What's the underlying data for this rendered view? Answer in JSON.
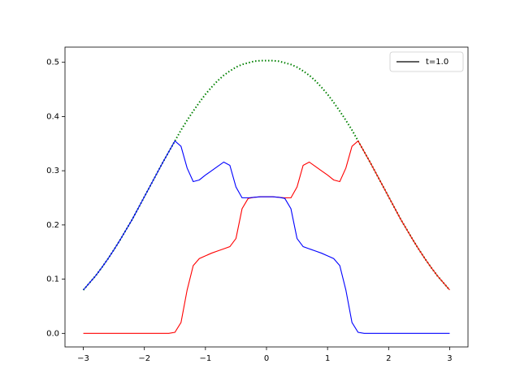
{
  "chart_data": {
    "type": "line",
    "x": [
      -3,
      -2.9,
      -2.8,
      -2.7,
      -2.6,
      -2.5,
      -2.4,
      -2.3,
      -2.2,
      -2.1,
      -2,
      -1.9,
      -1.8,
      -1.7,
      -1.6,
      -1.5,
      -1.4,
      -1.3,
      -1.2,
      -1.1,
      -1,
      -0.9,
      -0.8,
      -0.7,
      -0.6,
      -0.5,
      -0.4,
      -0.3,
      -0.2,
      -0.1,
      0,
      0.1,
      0.2,
      0.3,
      0.4,
      0.5,
      0.6,
      0.7,
      0.8,
      0.9,
      1,
      1.1,
      1.2,
      1.3,
      1.4,
      1.5,
      1.6,
      1.7,
      1.8,
      1.9,
      2,
      2.1,
      2.2,
      2.3,
      2.4,
      2.5,
      2.6,
      2.7,
      2.8,
      2.9,
      3
    ],
    "series": [
      {
        "color": "#008000",
        "style": "dotted",
        "values": [
          0.08,
          0.093,
          0.106,
          0.121,
          0.137,
          0.154,
          0.172,
          0.191,
          0.21,
          0.231,
          0.252,
          0.273,
          0.294,
          0.315,
          0.335,
          0.355,
          0.375,
          0.393,
          0.41,
          0.426,
          0.441,
          0.454,
          0.466,
          0.476,
          0.484,
          0.491,
          0.496,
          0.499,
          0.502,
          0.503,
          0.503,
          0.503,
          0.502,
          0.499,
          0.496,
          0.491,
          0.484,
          0.476,
          0.466,
          0.454,
          0.441,
          0.426,
          0.41,
          0.393,
          0.375,
          0.355,
          0.335,
          0.315,
          0.294,
          0.273,
          0.252,
          0.231,
          0.21,
          0.191,
          0.172,
          0.154,
          0.137,
          0.121,
          0.106,
          0.093,
          0.08
        ]
      },
      {
        "color": "#ff0000",
        "style": "solid",
        "values": [
          0,
          0,
          0,
          0,
          0,
          0,
          0,
          0,
          0,
          0,
          0,
          0,
          0,
          0,
          0,
          0.002,
          0.02,
          0.08,
          0.125,
          0.138,
          0.143,
          0.148,
          0.152,
          0.156,
          0.16,
          0.175,
          0.23,
          0.249,
          0.251,
          0.252,
          0.252,
          0.252,
          0.251,
          0.25,
          0.25,
          0.27,
          0.31,
          0.316,
          0.308,
          0.3,
          0.292,
          0.283,
          0.28,
          0.305,
          0.345,
          0.355,
          0.335,
          0.315,
          0.294,
          0.273,
          0.252,
          0.231,
          0.21,
          0.191,
          0.172,
          0.154,
          0.137,
          0.121,
          0.106,
          0.093,
          0.08
        ]
      },
      {
        "color": "#0000ff",
        "style": "solid",
        "values": [
          0.08,
          0.093,
          0.106,
          0.121,
          0.137,
          0.154,
          0.172,
          0.191,
          0.21,
          0.231,
          0.252,
          0.273,
          0.294,
          0.315,
          0.335,
          0.355,
          0.345,
          0.305,
          0.28,
          0.283,
          0.292,
          0.3,
          0.308,
          0.316,
          0.31,
          0.27,
          0.25,
          0.25,
          0.251,
          0.252,
          0.252,
          0.252,
          0.251,
          0.249,
          0.23,
          0.175,
          0.16,
          0.156,
          0.152,
          0.148,
          0.143,
          0.138,
          0.125,
          0.08,
          0.02,
          0.002,
          0,
          0,
          0,
          0,
          0,
          0,
          0,
          0,
          0,
          0,
          0,
          0,
          0,
          0,
          0
        ]
      }
    ],
    "legend": {
      "label": "t=1.0",
      "color": "#000000",
      "loc": "upper right"
    },
    "xlim": [
      -3.3,
      3.3
    ],
    "xticks": [
      {
        "value": -3,
        "label": "−3"
      },
      {
        "value": -2,
        "label": "−2"
      },
      {
        "value": -1,
        "label": "−1"
      },
      0,
      1,
      2,
      3
    ],
    "ylim": [
      -0.025,
      0.528
    ],
    "yticks": [
      {
        "value": 0,
        "label": "0.0"
      },
      0.1,
      0.2,
      0.3,
      0.4,
      0.5
    ]
  }
}
